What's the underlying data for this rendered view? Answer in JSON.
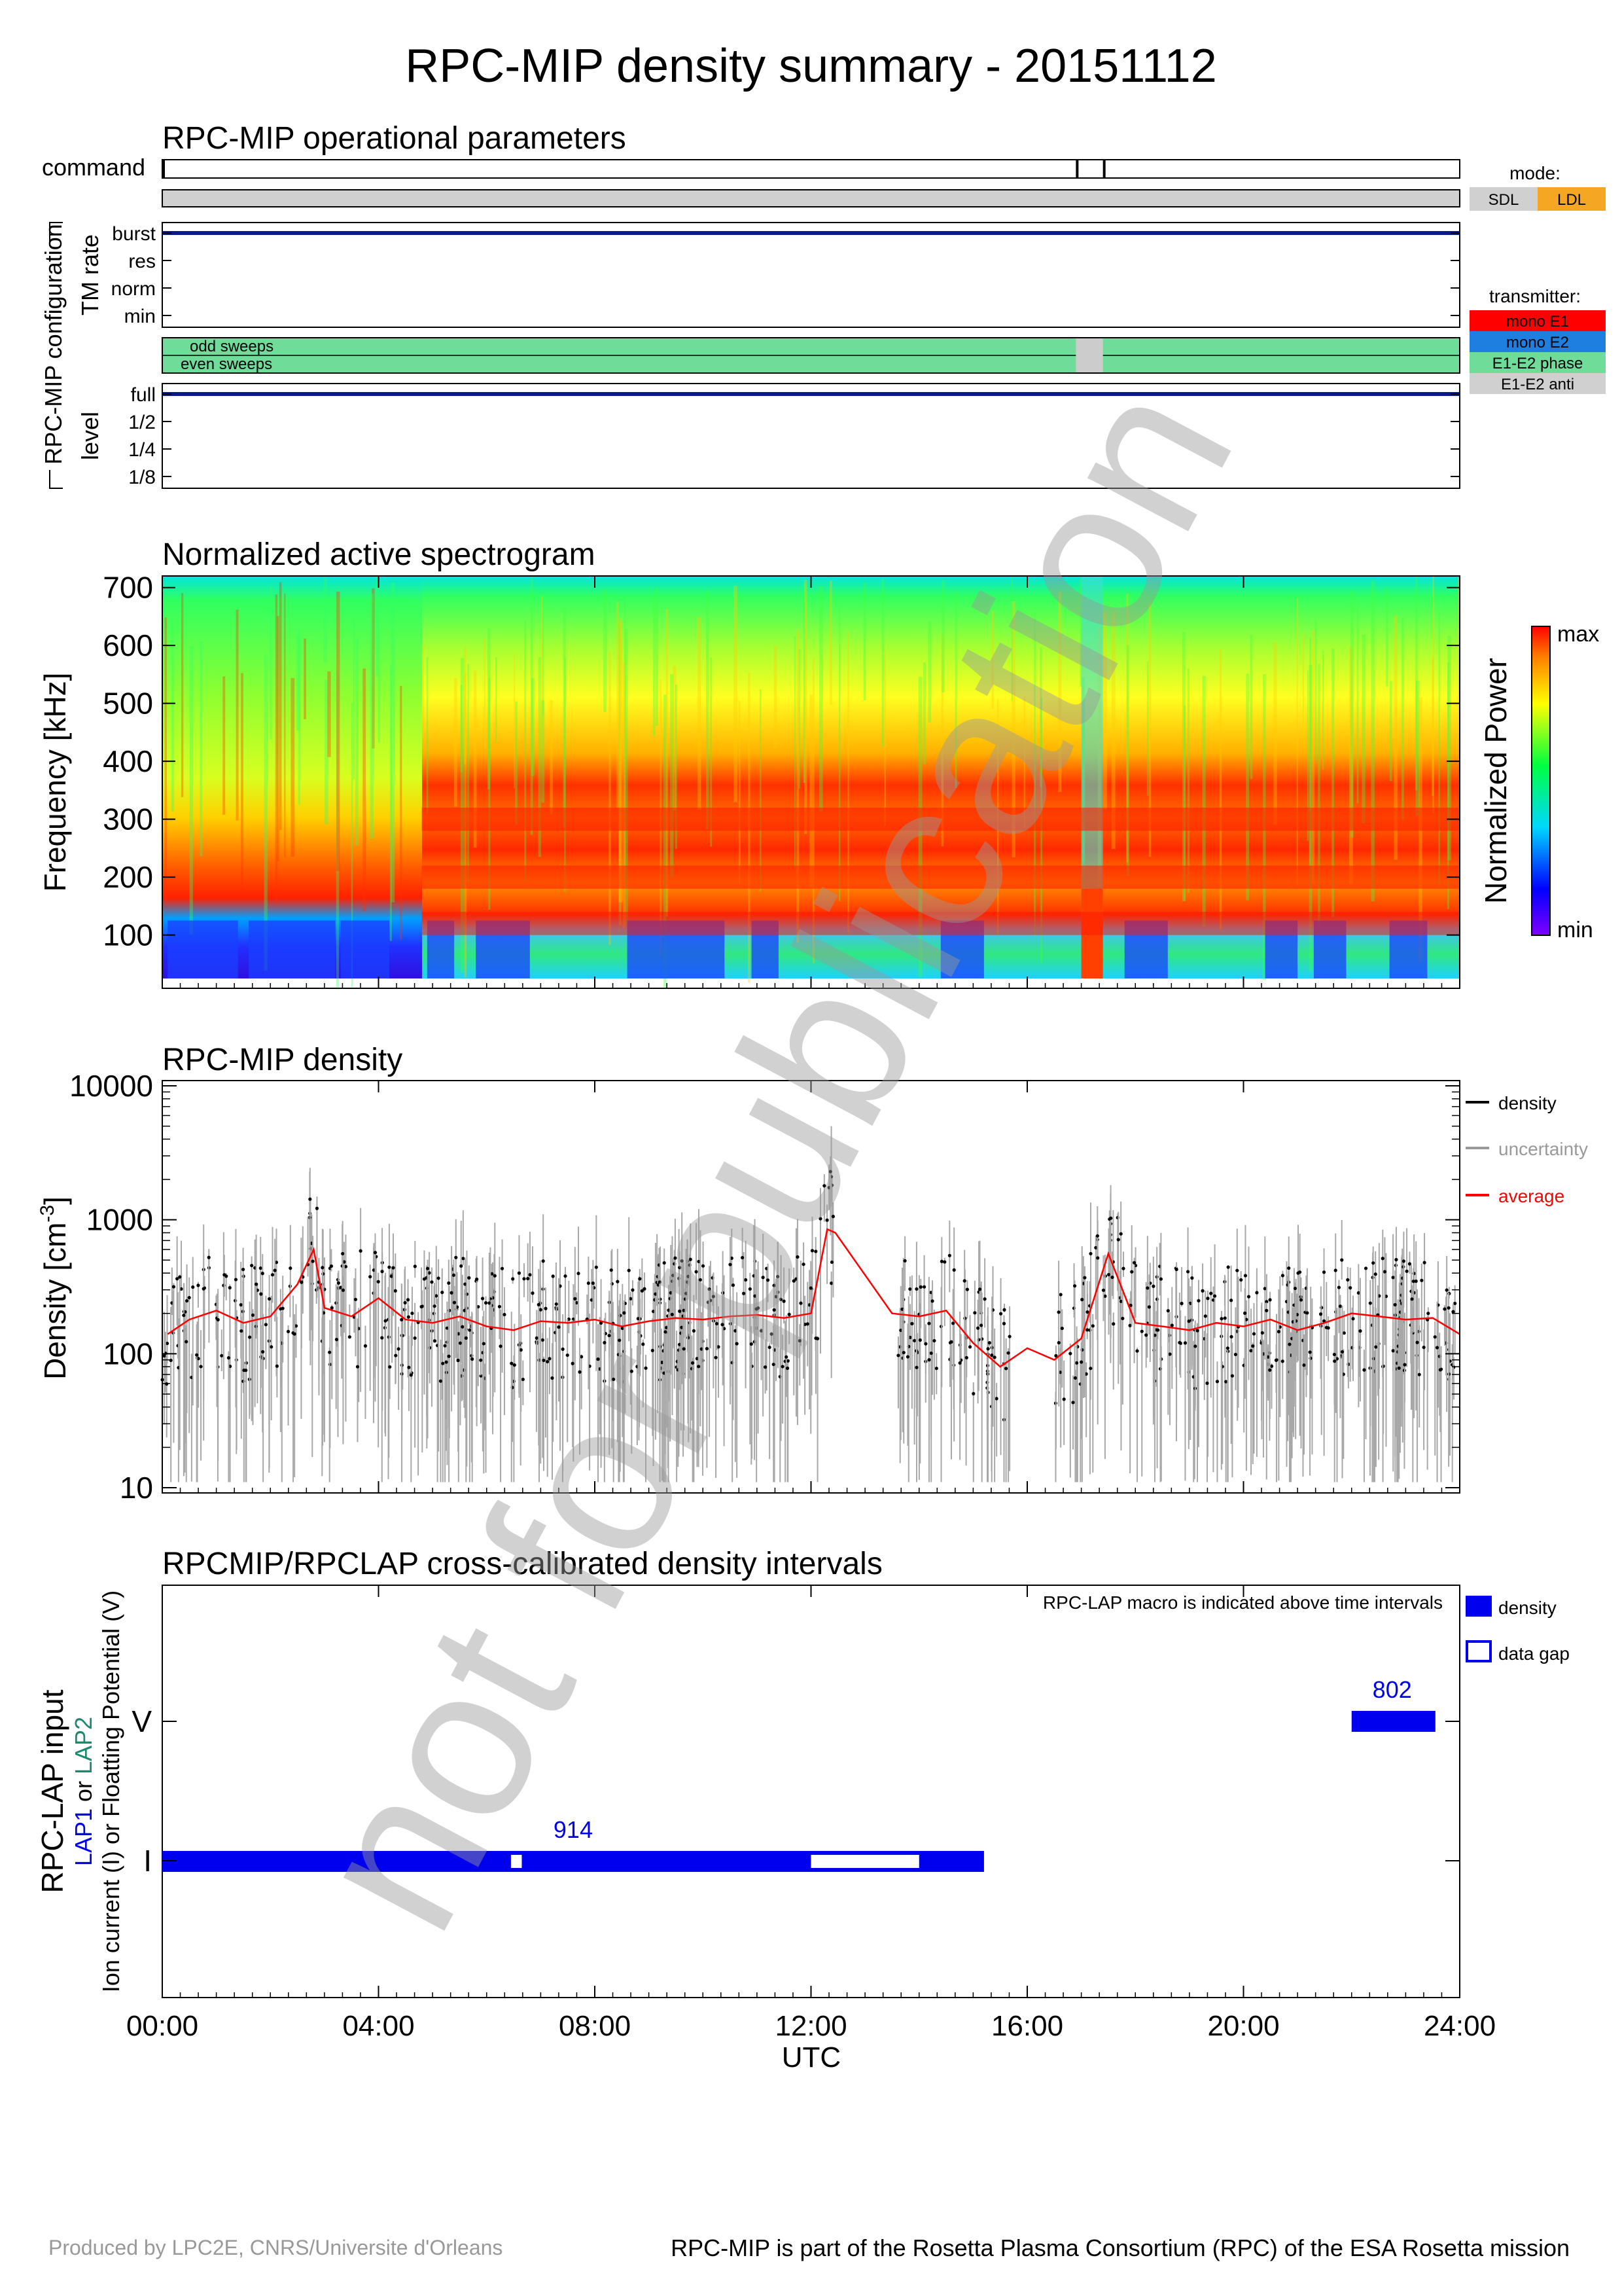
{
  "page": {
    "title": "RPC-MIP density summary - 20151112",
    "footer_left": "Produced by LPC2E, CNRS/Universite d'Orleans",
    "footer_right": "RPC-MIP is part of the Rosetta Plasma Consortium (RPC) of the ESA Rosetta mission",
    "watermark": "not for publication"
  },
  "operational": {
    "title": "RPC-MIP operational parameters",
    "command_label": "command",
    "config_label": "RPC-MIP configuration",
    "tm_rate_label": "TM rate",
    "tm_rate_levels": [
      "burst",
      "res",
      "norm",
      "min"
    ],
    "tm_rate_value": "burst",
    "sweeps_odd": "odd sweeps",
    "sweeps_even": "even sweeps",
    "level_label": "level",
    "levels": [
      "full",
      "1/2",
      "1/4",
      "1/8"
    ],
    "level_value": "full",
    "command_ticks_hours": [
      0.0,
      16.9,
      17.4
    ],
    "sweep_gap_hours": [
      16.9,
      17.4
    ],
    "mode_title": "mode:",
    "mode_sdl": "SDL",
    "mode_ldl": "LDL",
    "transmitter_title": "transmitter:",
    "transmitter": [
      "mono E1",
      "mono E2",
      "E1-E2 phase",
      "E1-E2 anti"
    ],
    "colors": {
      "sdl": "#d0d0d0",
      "ldl": "#f5a623",
      "mono_e1": "#ff0000",
      "mono_e2": "#1e7fe0",
      "e1e2_phase": "#6fdc9a",
      "e1e2_anti": "#d0d0d0",
      "tm_line": "#0a1a8c"
    }
  },
  "spectrogram": {
    "title": "Normalized active spectrogram",
    "ylabel": "Frequency [kHz]",
    "yticks": [
      "700",
      "600",
      "500",
      "400",
      "300",
      "200",
      "100"
    ],
    "colorbar_label": "Normalized Power",
    "colorbar_max": "max",
    "colorbar_min": "min"
  },
  "density": {
    "title": "RPC-MIP density",
    "ylabel": "Density [cm",
    "ylabel_sup": "-3",
    "ylabel_end": "]",
    "yticks": [
      "10000",
      "1000",
      "100",
      "10"
    ],
    "legend": [
      "density",
      "uncertainty",
      "average"
    ],
    "legend_colors": [
      "#000000",
      "#999999",
      "#ff0000"
    ]
  },
  "lap": {
    "title": "RPCMIP/RPCLAP cross-calibrated density intervals",
    "note": "RPC-LAP macro is indicated above time intervals",
    "ylabel_main": "RPC-LAP input",
    "ylabel_lap1": "LAP1",
    "ylabel_or": " or ",
    "ylabel_lap2": "LAP2",
    "ylabel_sub": "Ion current (I) or Floatting Potential (V)",
    "ytick_v": "V",
    "ytick_i": "I",
    "legend_density": "density",
    "legend_gap": "data gap",
    "macro_i": "914",
    "macro_v": "802",
    "intervals_i": [
      [
        0.0,
        15.2
      ]
    ],
    "gaps_i": [
      [
        6.45,
        6.65
      ],
      [
        12.0,
        14.0
      ]
    ],
    "intervals_v": [
      [
        22.0,
        23.55
      ]
    ],
    "color": "#0000ee"
  },
  "xaxis": {
    "ticks": [
      "00:00",
      "04:00",
      "08:00",
      "12:00",
      "16:00",
      "20:00",
      "24:00"
    ],
    "label": "UTC"
  },
  "chart_data": [
    {
      "type": "heatmap",
      "title": "Normalized active spectrogram",
      "ylabel": "Frequency [kHz]",
      "xlim_hours": [
        0,
        24
      ],
      "ylim": [
        25,
        720
      ],
      "colorscale": "rainbow (min=purple, max=red)",
      "features": {
        "strong_bands_khz": [
          120,
          200,
          300
        ],
        "high_power_interval_hours": [
          4.8,
          24
        ],
        "low_frequency_dropout_hours": [
          17.0,
          17.4
        ]
      }
    },
    {
      "type": "scatter",
      "title": "RPC-MIP density",
      "yscale": "log",
      "ylim": [
        10,
        10000
      ],
      "xlim_hours": [
        0,
        24
      ],
      "series": [
        {
          "name": "average",
          "x": [
            0.1,
            0.5,
            1.0,
            1.5,
            2.0,
            2.5,
            2.8,
            3.0,
            3.5,
            4.0,
            4.5,
            5.0,
            5.5,
            6.0,
            6.5,
            7.0,
            7.5,
            8.0,
            8.5,
            9.0,
            9.5,
            10.0,
            10.5,
            11.0,
            11.5,
            12.0,
            12.3,
            12.45,
            13.5,
            14.0,
            14.5,
            15.0,
            15.5,
            16.0,
            16.5,
            17.0,
            17.5,
            18.0,
            18.5,
            19.0,
            19.5,
            20.0,
            20.5,
            21.0,
            21.5,
            22.0,
            22.5,
            23.0,
            23.5,
            24.0
          ],
          "y": [
            140,
            180,
            210,
            170,
            190,
            330,
            600,
            220,
            190,
            260,
            180,
            170,
            190,
            160,
            150,
            175,
            170,
            180,
            160,
            175,
            185,
            180,
            190,
            195,
            185,
            200,
            850,
            800,
            200,
            190,
            210,
            120,
            80,
            110,
            90,
            130,
            560,
            170,
            160,
            150,
            170,
            160,
            180,
            150,
            170,
            200,
            190,
            180,
            185,
            140
          ]
        }
      ]
    },
    {
      "type": "table",
      "title": "RPCMIP/RPCLAP cross-calibrated density intervals",
      "rows": [
        {
          "input": "I",
          "macro": "914",
          "interval_hours": [
            0.0,
            15.2
          ],
          "gaps_hours": [
            [
              6.45,
              6.65
            ],
            [
              12.0,
              14.0
            ]
          ]
        },
        {
          "input": "V",
          "macro": "802",
          "interval_hours": [
            22.0,
            23.55
          ]
        }
      ]
    }
  ]
}
